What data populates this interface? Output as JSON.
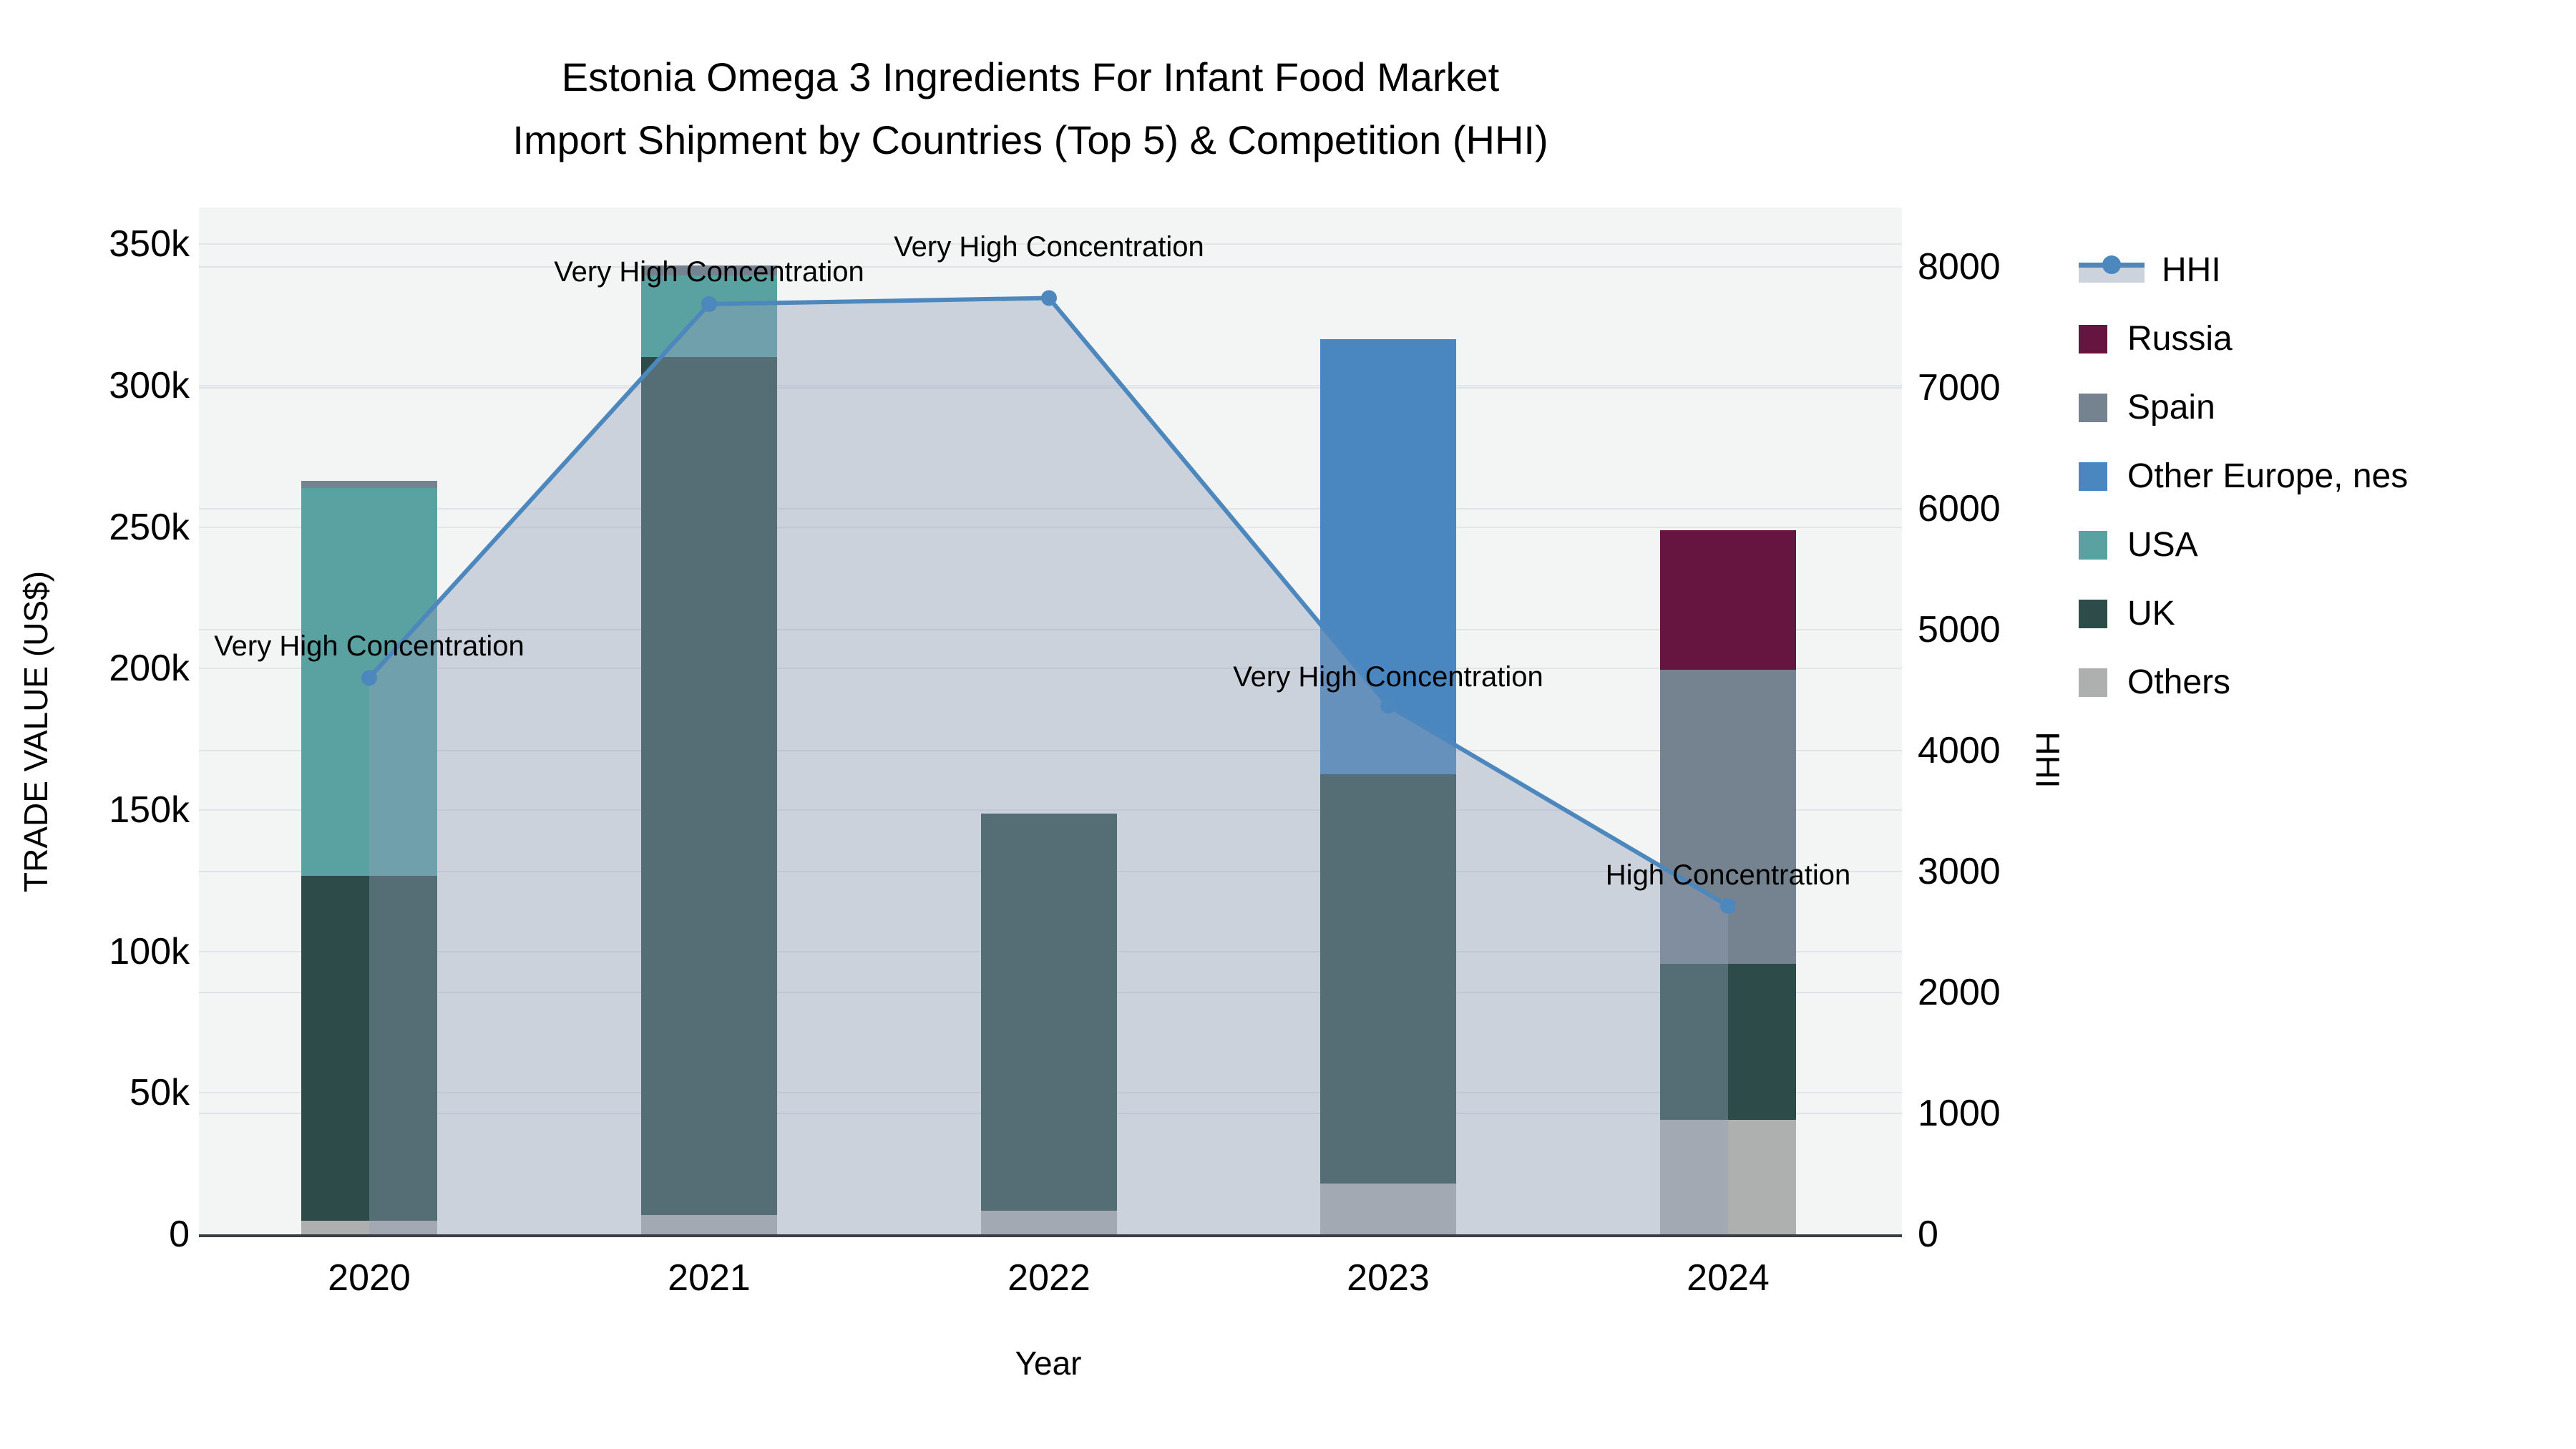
{
  "title": {
    "line1": "Estonia Omega 3 Ingredients For Infant Food Market",
    "line2": "Import Shipment by Countries (Top 5) & Competition (HHI)"
  },
  "axes": {
    "left": {
      "title": "TRADE VALUE (US$)",
      "ticks": [
        "0",
        "50k",
        "100k",
        "150k",
        "200k",
        "250k",
        "300k",
        "350k"
      ],
      "tick_values": [
        0,
        50000,
        100000,
        150000,
        200000,
        250000,
        300000,
        350000
      ]
    },
    "right": {
      "title": "HHI",
      "ticks": [
        "0",
        "1000",
        "2000",
        "3000",
        "4000",
        "5000",
        "6000",
        "7000",
        "8000"
      ],
      "tick_values": [
        0,
        1000,
        2000,
        3000,
        4000,
        5000,
        6000,
        7000,
        8000
      ]
    },
    "x": {
      "title": "Year",
      "categories": [
        "2020",
        "2021",
        "2022",
        "2023",
        "2024"
      ]
    }
  },
  "legend": [
    {
      "label": "HHI",
      "type": "line",
      "color": "#4c87bd"
    },
    {
      "label": "Russia",
      "type": "box",
      "color": "#661540"
    },
    {
      "label": "Spain",
      "type": "box",
      "color": "#75828f"
    },
    {
      "label": "Other Europe, nes",
      "type": "box",
      "color": "#4a87c0"
    },
    {
      "label": "USA",
      "type": "box",
      "color": "#5aa1a2"
    },
    {
      "label": "UK",
      "type": "box",
      "color": "#2d4b49"
    },
    {
      "label": "Others",
      "type": "box",
      "color": "#aeb0b0"
    }
  ],
  "chart_data": {
    "type": "bar+line",
    "categories": [
      "2020",
      "2021",
      "2022",
      "2023",
      "2024"
    ],
    "bar_unit": "US$",
    "stack_order_bottom_to_top": [
      "Others",
      "UK",
      "USA",
      "Spain",
      "Other Europe, nes",
      "Russia"
    ],
    "series": [
      {
        "name": "Others",
        "color": "#aeb0b0",
        "values": [
          4800,
          6800,
          8300,
          18000,
          40500
        ]
      },
      {
        "name": "UK",
        "color": "#2d4b49",
        "values": [
          121900,
          303300,
          140400,
          144700,
          55100
        ]
      },
      {
        "name": "USA",
        "color": "#5aa1a2",
        "values": [
          137000,
          28800,
          0,
          0,
          0
        ]
      },
      {
        "name": "Spain",
        "color": "#75828f",
        "values": [
          2600,
          3500,
          0,
          0,
          103900
        ]
      },
      {
        "name": "Other Europe, nes",
        "color": "#4a87c0",
        "values": [
          0,
          0,
          0,
          153700,
          0
        ]
      },
      {
        "name": "Russia",
        "color": "#661540",
        "values": [
          0,
          0,
          0,
          0,
          49400
        ]
      }
    ],
    "bar_totals": [
      266300,
      342400,
      148700,
      316400,
      248900
    ],
    "line_series": {
      "name": "HHI",
      "color": "#4c87bd",
      "axis": "right",
      "values": [
        4600,
        7690,
        7740,
        4370,
        2715
      ],
      "area_fill": "rgba(144,160,184,0.40)"
    },
    "title": "Estonia Omega 3 Ingredients For Infant Food Market Import Shipment by Countries (Top 5) & Competition (HHI)",
    "xlabel": "Year",
    "ylabel_left": "TRADE VALUE (US$)",
    "ylabel_right": "HHI",
    "ylim_left": [
      0,
      350000
    ],
    "ylim_right": [
      0,
      8000
    ],
    "grid": true,
    "legend_position": "right"
  },
  "annotations": [
    {
      "year": "2020",
      "label": "Very High Concentration"
    },
    {
      "year": "2021",
      "label": "Very High Concentration"
    },
    {
      "year": "2022",
      "label": "Very High Concentration"
    },
    {
      "year": "2023",
      "label": "Very High Concentration"
    },
    {
      "year": "2024",
      "label": "High Concentration"
    }
  ],
  "colors": {
    "plot_background": "#f3f4f4",
    "page_background": "#ffffff",
    "gridline": "#e2e5e9",
    "axis_line": "#3a3f44",
    "text": "#000000"
  }
}
